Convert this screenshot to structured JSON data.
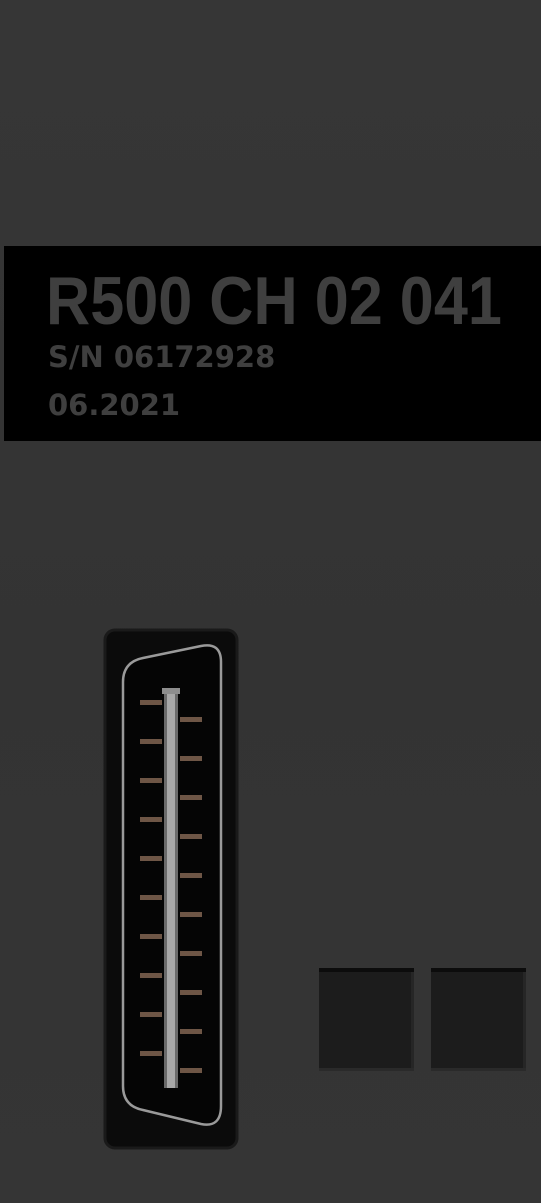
{
  "label": {
    "model": "R500 CH 02 041",
    "serial": "S/N 06172928",
    "date": "06.2021"
  },
  "colors": {
    "panel": "#353535",
    "label_background": "#000000",
    "label_text": "#3f3f3f",
    "connector_shell": "#999999",
    "connector_pins": "#6e5646",
    "switch": "#1c1c1c"
  }
}
